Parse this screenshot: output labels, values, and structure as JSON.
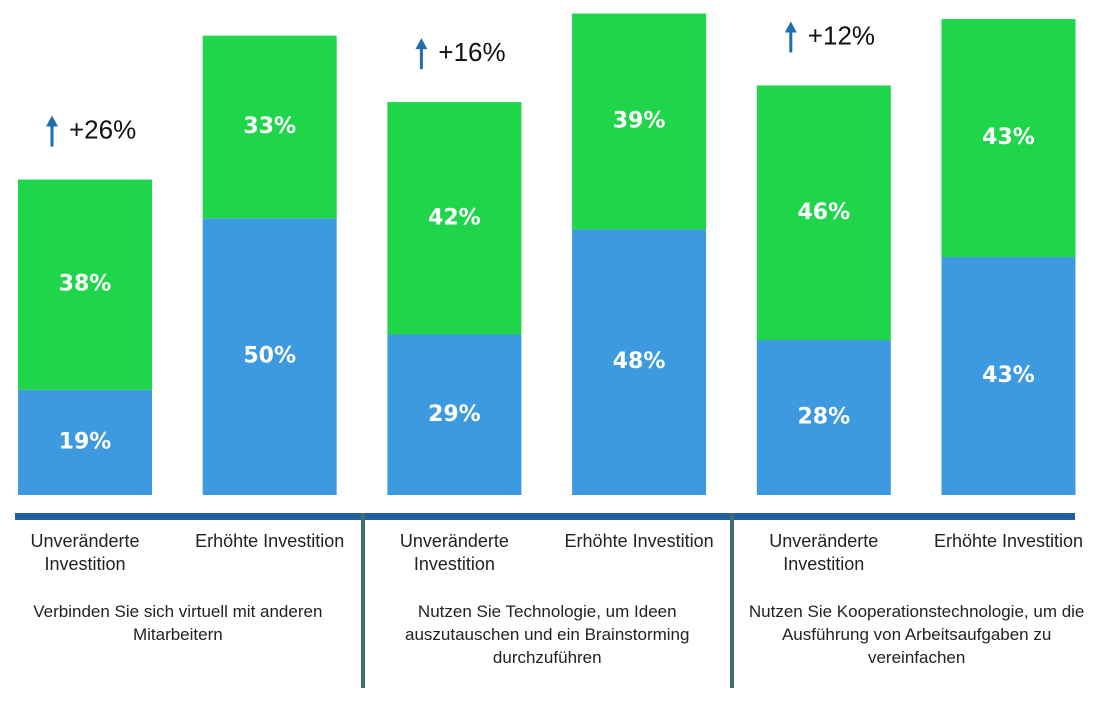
{
  "chart_data": {
    "type": "bar",
    "stacked": true,
    "categories": [
      "Unveränderte Investition",
      "Erhöhte Investition",
      "Unveränderte Investition",
      "Erhöhte Investition",
      "Unveränderte Investition",
      "Erhöhte Investition"
    ],
    "groups": [
      "Verbinden Sie sich virtuell mit anderen Mitarbeitern",
      "Nutzen Sie Technologie, um Ideen auszutauschen und ein Brainstorming durchzuführen",
      "Nutzen Sie Kooperationstechnologie, um die Ausführung von Arbeitsaufgaben zu vereinfachen"
    ],
    "series": [
      {
        "color": "#3d9ae0",
        "values": [
          19,
          50,
          29,
          48,
          28,
          43
        ],
        "value_labels": [
          "19%",
          "50%",
          "29%",
          "48%",
          "28%",
          "43%"
        ]
      },
      {
        "color": "#1fd64b",
        "values": [
          38,
          33,
          42,
          39,
          46,
          43
        ],
        "value_labels": [
          "38%",
          "33%",
          "42%",
          "39%",
          "46%",
          "43%"
        ]
      }
    ],
    "ylim": [
      0,
      88
    ],
    "annotations": [
      "+26%",
      "+16%",
      "+12%"
    ]
  }
}
